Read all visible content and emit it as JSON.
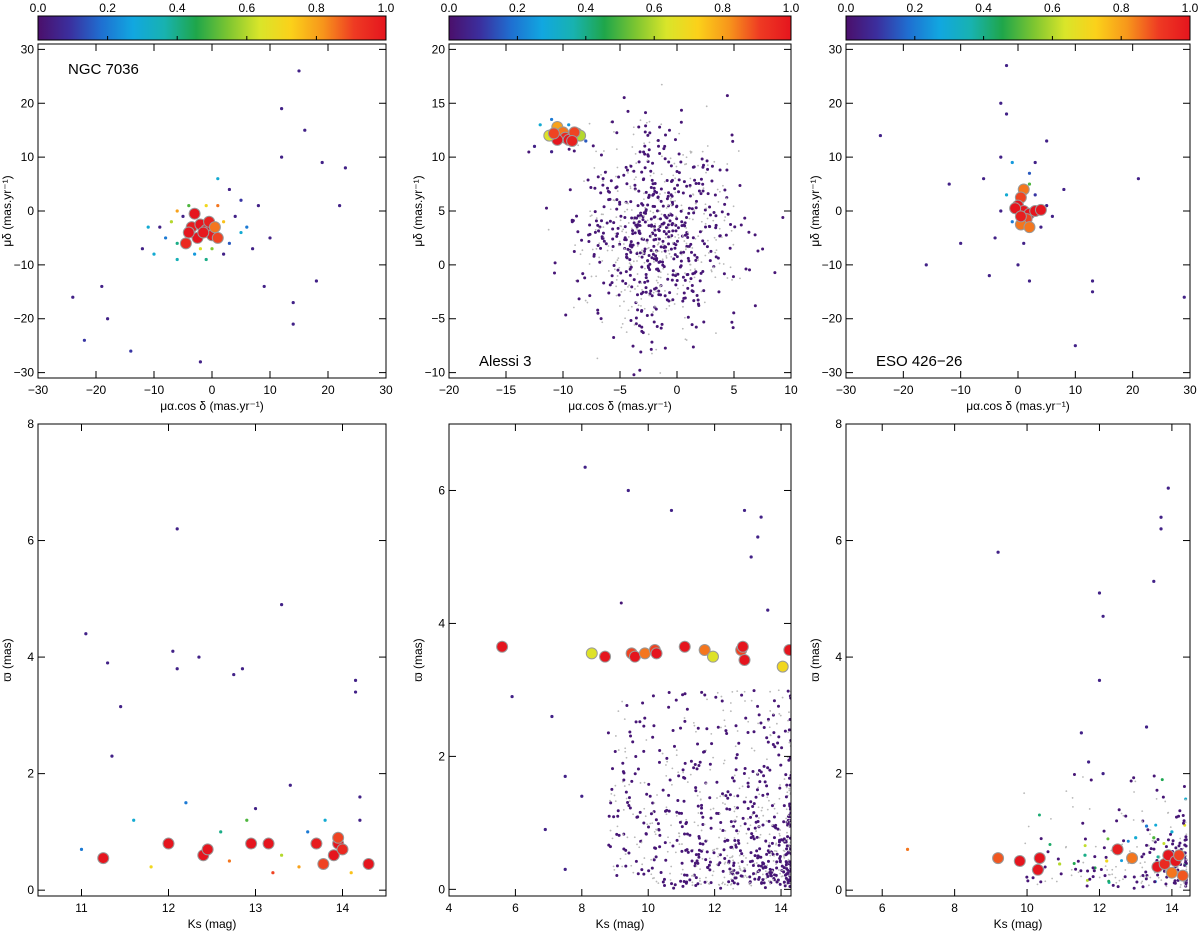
{
  "colorbar": {
    "ticks": [
      "0.0",
      "0.2",
      "0.4",
      "0.6",
      "0.8",
      "1.0"
    ],
    "colors": [
      "#4b0f6b",
      "#3b2f9e",
      "#1f6fd1",
      "#11a7e0",
      "#18b2b0",
      "#1fa64a",
      "#7cc531",
      "#d9e52a",
      "#fbd11a",
      "#f7961b",
      "#ee3a23",
      "#e5151e"
    ]
  },
  "chart_data": [
    {
      "id": "ngc7036-pm",
      "type": "scatter",
      "title": "NGC 7036",
      "title_pos": "top-left",
      "xlabel": "μα.cos δ (mas.yr⁻¹)",
      "ylabel": "μδ (mas.yr⁻¹)",
      "xlim": [
        -30,
        30
      ],
      "ylim": [
        -31,
        31
      ],
      "xticks": [
        -30,
        -20,
        -10,
        0,
        10,
        20,
        30
      ],
      "yticks": [
        -30,
        -20,
        -10,
        0,
        10,
        20,
        30
      ],
      "members": [
        [
          -3,
          -0.5,
          1.0
        ],
        [
          -3.5,
          -3,
          0.98
        ],
        [
          -2,
          -2.5,
          1.0
        ],
        [
          -1,
          -3.5,
          1.0
        ],
        [
          0,
          -4.5,
          0.98
        ],
        [
          -0.5,
          -2,
          0.97
        ],
        [
          -2.5,
          -5,
          1.0
        ],
        [
          -4.5,
          -6,
          0.95
        ],
        [
          -1.5,
          -4,
          0.99
        ],
        [
          0.5,
          -3,
          0.85
        ],
        [
          -4,
          -4,
          1.0
        ],
        [
          1,
          -5,
          0.9
        ]
      ],
      "field": [
        [
          -24,
          -16,
          0.05
        ],
        [
          -22,
          -24,
          0.1
        ],
        [
          -18,
          -20,
          0.05
        ],
        [
          -14,
          -26,
          0.1
        ],
        [
          -10,
          -8,
          0.3
        ],
        [
          -8,
          -5,
          0.2
        ],
        [
          -7,
          -2,
          0.6
        ],
        [
          -6,
          -6,
          0.4
        ],
        [
          -5,
          -1,
          0.05
        ],
        [
          -4,
          1,
          0.5
        ],
        [
          -6,
          -9,
          0.35
        ],
        [
          -3,
          -8,
          0.25
        ],
        [
          -9,
          -3,
          0.05
        ],
        [
          -1,
          1,
          0.7
        ],
        [
          1,
          1,
          0.85
        ],
        [
          2,
          -2,
          0.75
        ],
        [
          3,
          -6,
          0.15
        ],
        [
          4,
          -1,
          0.05
        ],
        [
          5,
          -4,
          0.3
        ],
        [
          6,
          -3,
          0.2
        ],
        [
          7,
          -7,
          0.05
        ],
        [
          8,
          1,
          0.05
        ],
        [
          3,
          4,
          0.05
        ],
        [
          5,
          2,
          0.1
        ],
        [
          2,
          -8,
          0.05
        ],
        [
          -2,
          -7,
          0.65
        ],
        [
          0,
          -7,
          0.55
        ],
        [
          1,
          6,
          0.3
        ],
        [
          -11,
          -3,
          0.3
        ],
        [
          -12,
          -7,
          0.05
        ],
        [
          10,
          -5,
          0.05
        ],
        [
          12,
          10,
          0.05
        ],
        [
          15,
          26,
          0.05
        ],
        [
          12,
          19,
          0.05
        ],
        [
          16,
          15,
          0.05
        ],
        [
          19,
          9,
          0.05
        ],
        [
          22,
          1,
          0.05
        ],
        [
          23,
          8,
          0.05
        ],
        [
          14,
          -21,
          0.05
        ],
        [
          14,
          -17,
          0.05
        ],
        [
          18,
          -13,
          0.05
        ],
        [
          -2,
          -28,
          0.05
        ],
        [
          -19,
          -14,
          0.05
        ],
        [
          9,
          -14,
          0.05
        ],
        [
          -6,
          0,
          0.8
        ],
        [
          -1,
          -9,
          0.4
        ]
      ]
    },
    {
      "id": "alessi3-pm",
      "type": "scatter",
      "title": "Alessi 3",
      "title_pos": "bottom-left",
      "xlabel": "μα.cos δ (mas.yr⁻¹)",
      "ylabel": "μδ (mas.yr⁻¹)",
      "xlim": [
        -20,
        10
      ],
      "ylim": [
        -10.5,
        20.5
      ],
      "xticks": [
        -20,
        -15,
        -10,
        -5,
        0,
        5,
        10
      ],
      "yticks": [
        -10,
        -5,
        0,
        5,
        10,
        15,
        20
      ],
      "members": [
        [
          -10.5,
          12.8,
          0.8
        ],
        [
          -10,
          12.3,
          0.85
        ],
        [
          -9.8,
          11.8,
          0.95
        ],
        [
          -10.5,
          11.6,
          1.0
        ],
        [
          -9.5,
          11.6,
          1.0
        ],
        [
          -11.2,
          12,
          0.65
        ],
        [
          -8.8,
          12.2,
          0.55
        ],
        [
          -8.5,
          12,
          0.6
        ],
        [
          -9,
          12.3,
          0.9
        ],
        [
          -9.2,
          11.5,
          0.97
        ],
        [
          -10.8,
          12.2,
          0.9
        ]
      ],
      "cloud": {
        "center": [
          -1.5,
          3
        ],
        "sigma": [
          3.5,
          4.5
        ],
        "count": 900,
        "seed": 7
      },
      "field": [
        [
          -12,
          13,
          0.3
        ],
        [
          -11,
          13.5,
          0.2
        ],
        [
          -9.5,
          13,
          0.25
        ],
        [
          -8,
          11.5,
          0.15
        ],
        [
          -12.5,
          11,
          0.05
        ],
        [
          -11,
          10.5,
          0.05
        ]
      ]
    },
    {
      "id": "eso426-pm",
      "type": "scatter",
      "title": "ESO 426−26",
      "title_pos": "bottom-left",
      "xlabel": "μα.cos δ (mas.yr⁻¹)",
      "ylabel": "μδ (mas.yr⁻¹)",
      "xlim": [
        -30,
        30
      ],
      "ylim": [
        -31,
        31
      ],
      "xticks": [
        -30,
        -20,
        -10,
        0,
        10,
        20,
        30
      ],
      "yticks": [
        -30,
        -20,
        -10,
        0,
        10,
        20,
        30
      ],
      "members": [
        [
          1,
          4,
          0.85
        ],
        [
          0.5,
          2.5,
          0.9
        ],
        [
          0,
          1,
          1.0
        ],
        [
          1,
          0,
          1.0
        ],
        [
          2,
          -0.5,
          1.0
        ],
        [
          3,
          0,
          1.0
        ],
        [
          4,
          0.2,
          1.0
        ],
        [
          1.5,
          -1.5,
          0.9
        ],
        [
          0.5,
          -2.5,
          0.85
        ],
        [
          2,
          -3,
          0.85
        ],
        [
          -0.5,
          0.5,
          1.0
        ],
        [
          0.5,
          -1,
          0.98
        ]
      ],
      "field": [
        [
          -2,
          3,
          0.3
        ],
        [
          2,
          5,
          0.5
        ],
        [
          -1,
          -2,
          0.2
        ],
        [
          3,
          3,
          0.1
        ],
        [
          -3,
          0,
          0.05
        ],
        [
          4,
          -3,
          0.05
        ],
        [
          -4,
          -5,
          0.05
        ],
        [
          1,
          -6,
          0.05
        ],
        [
          5,
          1,
          0.05
        ],
        [
          6,
          -1,
          0.05
        ],
        [
          -6,
          6,
          0.05
        ],
        [
          8,
          4,
          0.05
        ],
        [
          -12,
          5,
          0.05
        ],
        [
          -16,
          -10,
          0.05
        ],
        [
          -10,
          -6,
          0.05
        ],
        [
          -24,
          14,
          0.05
        ],
        [
          -2,
          27,
          0.05
        ],
        [
          -3,
          20,
          0.05
        ],
        [
          -2,
          18,
          0.05
        ],
        [
          5,
          13,
          0.05
        ],
        [
          13,
          -13,
          0.05
        ],
        [
          13,
          -15,
          0.05
        ],
        [
          29,
          -16,
          0.05
        ],
        [
          10,
          -25,
          0.05
        ],
        [
          -1,
          9,
          0.25
        ],
        [
          2,
          7,
          0.15
        ],
        [
          -3,
          10,
          0.05
        ],
        [
          3,
          9,
          0.05
        ],
        [
          21,
          6,
          0.05
        ],
        [
          -5,
          -12,
          0.05
        ],
        [
          0,
          -10,
          0.05
        ],
        [
          2,
          -13,
          0.05
        ]
      ]
    },
    {
      "id": "ngc7036-cmd",
      "type": "scatter",
      "xlabel": "Ks (mag)",
      "ylabel": "ϖ (mas)",
      "xlim": [
        10.5,
        14.5
      ],
      "ylim": [
        -0.1,
        8
      ],
      "xticks": [
        11,
        12,
        13,
        14
      ],
      "yticks": [
        0,
        2,
        4,
        6,
        8
      ],
      "members": [
        [
          11.25,
          0.55,
          1.0
        ],
        [
          12.0,
          0.8,
          1.0
        ],
        [
          12.4,
          0.6,
          1.0
        ],
        [
          12.45,
          0.7,
          1.0
        ],
        [
          12.95,
          0.8,
          1.0
        ],
        [
          13.15,
          0.8,
          1.0
        ],
        [
          13.7,
          0.8,
          0.98
        ],
        [
          13.78,
          0.45,
          0.9
        ],
        [
          13.9,
          0.6,
          1.0
        ],
        [
          13.95,
          0.8,
          1.0
        ],
        [
          13.95,
          0.9,
          0.9
        ],
        [
          14.0,
          0.7,
          0.95
        ],
        [
          14.3,
          0.45,
          1.0
        ]
      ],
      "field": [
        [
          11.05,
          4.4,
          0.05
        ],
        [
          11.3,
          3.9,
          0.05
        ],
        [
          11.45,
          3.15,
          0.05
        ],
        [
          11.35,
          2.3,
          0.05
        ],
        [
          12.1,
          6.2,
          0.05
        ],
        [
          12.05,
          4.1,
          0.05
        ],
        [
          12.1,
          3.8,
          0.05
        ],
        [
          12.35,
          4.0,
          0.05
        ],
        [
          12.75,
          3.7,
          0.05
        ],
        [
          12.85,
          3.8,
          0.05
        ],
        [
          13.3,
          4.9,
          0.05
        ],
        [
          14.15,
          3.6,
          0.05
        ],
        [
          14.15,
          3.4,
          0.05
        ],
        [
          11.8,
          0.4,
          0.7
        ],
        [
          12.7,
          0.5,
          0.85
        ],
        [
          13.3,
          0.6,
          0.6
        ],
        [
          13.5,
          0.4,
          0.8
        ],
        [
          14.1,
          0.3,
          0.75
        ],
        [
          11.6,
          1.2,
          0.3
        ],
        [
          12.2,
          1.5,
          0.2
        ],
        [
          13.0,
          1.4,
          0.05
        ],
        [
          13.6,
          1.0,
          0.2
        ],
        [
          13.8,
          1.2,
          0.3
        ],
        [
          14.2,
          1.6,
          0.05
        ],
        [
          11.0,
          0.7,
          0.2
        ],
        [
          12.9,
          1.2,
          0.5
        ],
        [
          13.4,
          1.8,
          0.05
        ],
        [
          14.2,
          1.2,
          0.05
        ],
        [
          13.2,
          0.3,
          0.9
        ],
        [
          12.6,
          1.0,
          0.4
        ]
      ]
    },
    {
      "id": "alessi3-cmd",
      "type": "scatter",
      "xlabel": "Ks (mag)",
      "ylabel": "ϖ (mas)",
      "xlim": [
        4,
        14.3
      ],
      "ylim": [
        -0.1,
        7
      ],
      "xticks": [
        4,
        6,
        8,
        10,
        12,
        14
      ],
      "yticks": [
        0,
        2,
        4,
        6
      ],
      "members": [
        [
          5.6,
          3.65,
          1.0
        ],
        [
          8.3,
          3.55,
          0.65
        ],
        [
          8.7,
          3.5,
          1.0
        ],
        [
          9.5,
          3.55,
          0.9
        ],
        [
          9.6,
          3.5,
          1.0
        ],
        [
          9.9,
          3.55,
          0.85
        ],
        [
          10.2,
          3.6,
          0.9
        ],
        [
          10.25,
          3.55,
          1.0
        ],
        [
          11.1,
          3.65,
          1.0
        ],
        [
          11.7,
          3.6,
          0.85
        ],
        [
          11.95,
          3.5,
          0.65
        ],
        [
          12.8,
          3.6,
          0.9
        ],
        [
          12.9,
          3.45,
          1.0
        ],
        [
          12.85,
          3.65,
          1.0
        ],
        [
          14.05,
          3.35,
          0.7
        ],
        [
          14.25,
          3.6,
          1.0
        ]
      ],
      "cloud": {
        "type": "cmd",
        "count": 900,
        "seed": 11
      },
      "field": [
        [
          8.1,
          6.35,
          0.05
        ],
        [
          9.4,
          6.0,
          0.05
        ],
        [
          10.7,
          5.7,
          0.05
        ],
        [
          12.9,
          5.7,
          0.05
        ],
        [
          13.4,
          5.6,
          0.05
        ],
        [
          13.3,
          5.3,
          0.05
        ],
        [
          13.1,
          5.0,
          0.05
        ],
        [
          13.6,
          4.2,
          0.05
        ],
        [
          5.9,
          2.9,
          0.05
        ],
        [
          7.1,
          2.6,
          0.05
        ],
        [
          7.5,
          1.7,
          0.05
        ],
        [
          8.0,
          1.4,
          0.05
        ],
        [
          6.9,
          0.9,
          0.05
        ],
        [
          7.5,
          0.3,
          0.05
        ]
      ]
    },
    {
      "id": "eso426-cmd",
      "type": "scatter",
      "xlabel": "Ks (mag)",
      "ylabel": "ϖ (mas)",
      "xlim": [
        5,
        14.5
      ],
      "ylim": [
        -0.1,
        8
      ],
      "xticks": [
        6,
        8,
        10,
        12,
        14
      ],
      "yticks": [
        0,
        2,
        4,
        6,
        8
      ],
      "members": [
        [
          9.2,
          0.55,
          0.88
        ],
        [
          9.8,
          0.5,
          1.0
        ],
        [
          10.3,
          0.35,
          1.0
        ],
        [
          10.35,
          0.55,
          1.0
        ],
        [
          12.5,
          0.7,
          0.98
        ],
        [
          12.9,
          0.55,
          0.85
        ],
        [
          13.6,
          0.4,
          1.0
        ],
        [
          13.8,
          0.45,
          0.95
        ],
        [
          13.9,
          0.6,
          1.0
        ],
        [
          14.0,
          0.3,
          0.85
        ],
        [
          14.1,
          0.5,
          1.0
        ],
        [
          14.2,
          0.6,
          0.9
        ],
        [
          14.3,
          0.25,
          0.88
        ]
      ],
      "cloud": {
        "type": "cmd-sparse",
        "count": 260,
        "seed": 23
      },
      "field": [
        [
          9.2,
          5.8,
          0.05
        ],
        [
          12.0,
          5.1,
          0.05
        ],
        [
          12.1,
          4.7,
          0.05
        ],
        [
          12.0,
          3.6,
          0.05
        ],
        [
          13.7,
          6.4,
          0.05
        ],
        [
          13.9,
          6.9,
          0.05
        ],
        [
          13.7,
          6.2,
          0.05
        ],
        [
          13.5,
          5.3,
          0.05
        ],
        [
          11.5,
          2.7,
          0.05
        ],
        [
          11.7,
          2.2,
          0.05
        ],
        [
          12.1,
          2.0,
          0.05
        ],
        [
          13.3,
          2.8,
          0.05
        ],
        [
          6.7,
          0.7,
          0.85
        ],
        [
          10.9,
          0.45,
          0.6
        ],
        [
          11.6,
          0.6,
          0.4
        ],
        [
          12.2,
          0.5,
          0.7
        ],
        [
          13.0,
          0.9,
          0.3
        ],
        [
          13.3,
          1.1,
          0.2
        ],
        [
          13.5,
          0.9,
          0.5
        ],
        [
          14.0,
          1.0,
          0.3
        ]
      ]
    }
  ]
}
